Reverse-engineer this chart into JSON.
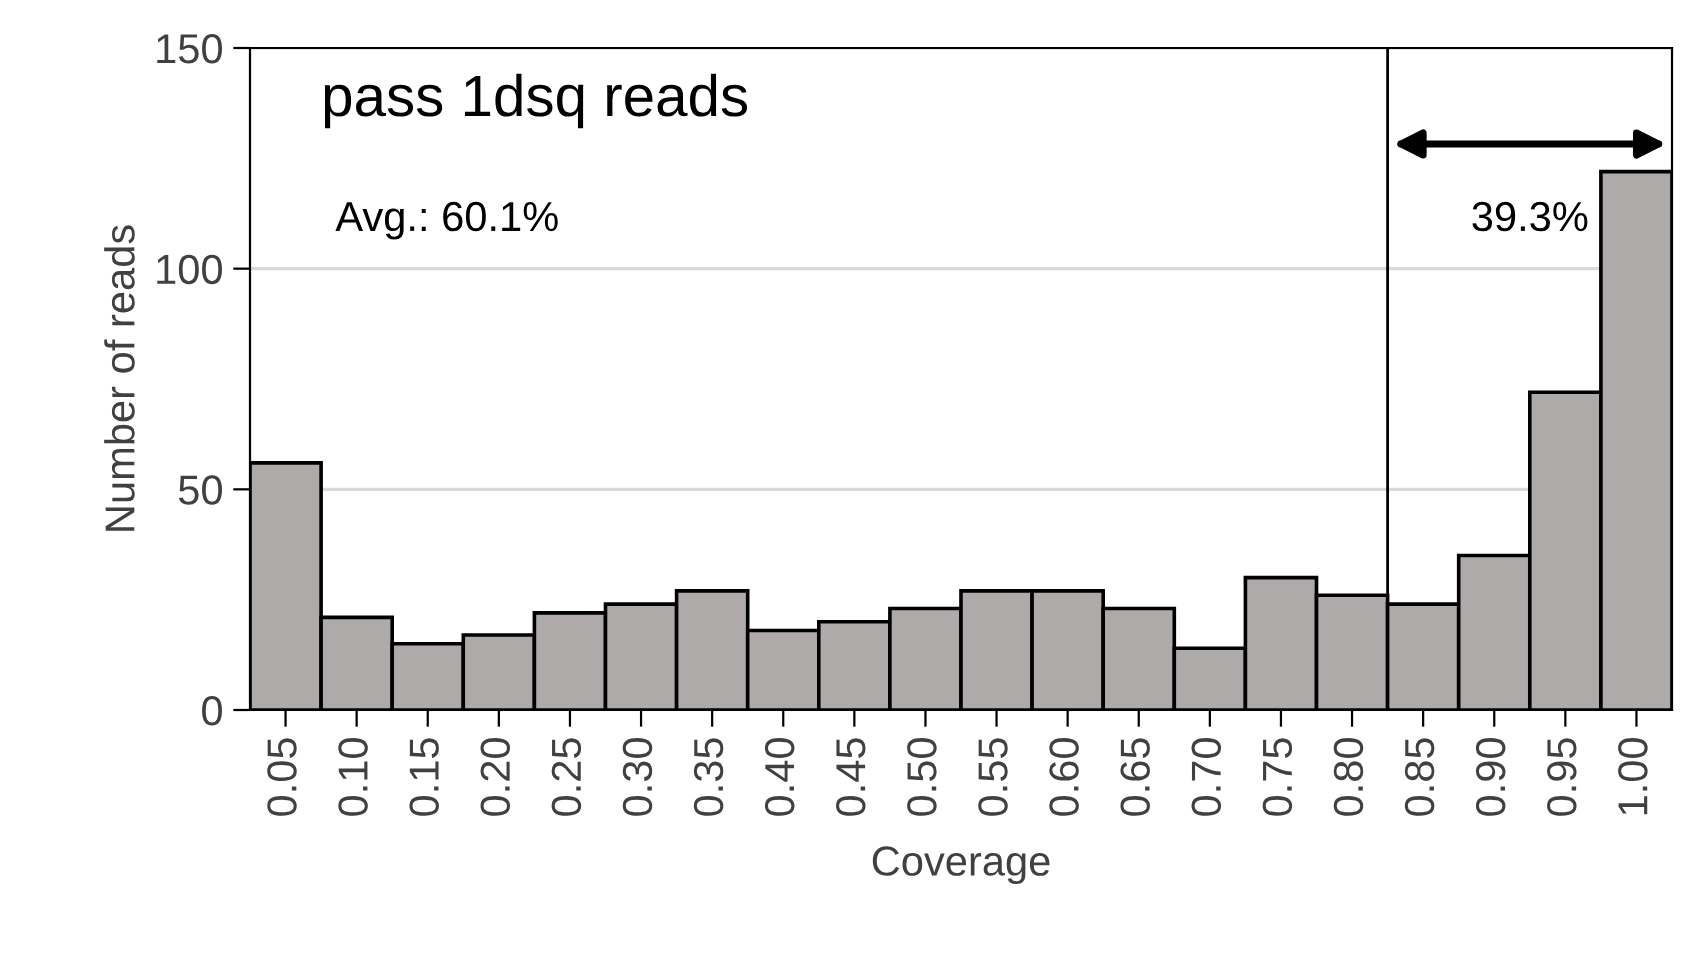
{
  "chart_data": {
    "type": "bar",
    "title": "pass 1dsq reads",
    "xlabel": "Coverage",
    "ylabel": "Number of reads",
    "categories": [
      "0.05",
      "0.10",
      "0.15",
      "0.20",
      "0.25",
      "0.30",
      "0.35",
      "0.40",
      "0.45",
      "0.50",
      "0.55",
      "0.60",
      "0.65",
      "0.70",
      "0.75",
      "0.80",
      "0.85",
      "0.90",
      "0.95",
      "1.00"
    ],
    "values": [
      56,
      21,
      15,
      17,
      22,
      24,
      27,
      18,
      20,
      23,
      27,
      27,
      23,
      14,
      30,
      26,
      24,
      35,
      72,
      122
    ],
    "color": "#aeaaaa",
    "ylim": [
      0,
      150
    ],
    "yticks": [
      0,
      50,
      100,
      150
    ],
    "grid": "y",
    "ref_lines": [
      {
        "axis": "x",
        "value": "0.85",
        "color": "#000000"
      }
    ],
    "annotations": [
      "Avg.: 60.1%",
      "39.3%"
    ]
  }
}
